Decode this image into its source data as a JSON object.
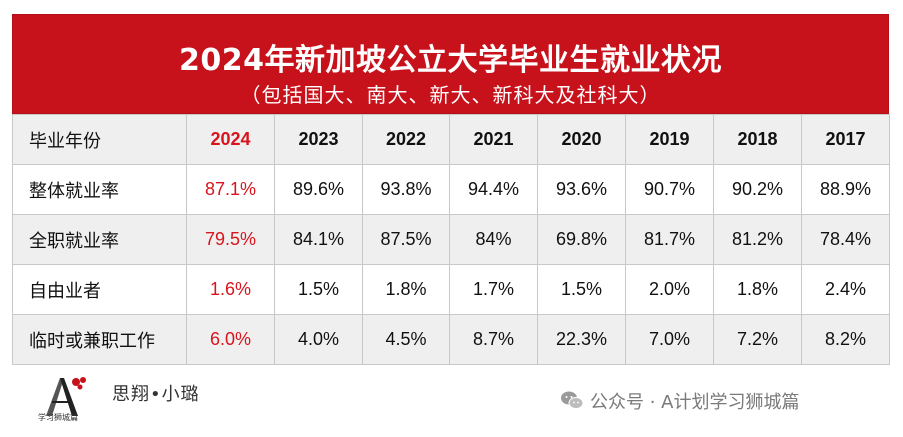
{
  "chart_data": {
    "type": "table",
    "title": "2024年新加坡公立大学毕业生就业状况",
    "subtitle": "（包括国大、南大、新大、新科大及社科大）",
    "header": {
      "label": "毕业年份",
      "years": [
        "2024",
        "2023",
        "2022",
        "2021",
        "2020",
        "2019",
        "2018",
        "2017"
      ]
    },
    "rows": [
      {
        "label": "整体就业率",
        "values": [
          "87.1%",
          "89.6%",
          "93.8%",
          "94.4%",
          "93.6%",
          "90.7%",
          "90.2%",
          "88.9%"
        ]
      },
      {
        "label": "全职就业率",
        "values": [
          "79.5%",
          "84.1%",
          "87.5%",
          "84%",
          "69.8%",
          "81.7%",
          "81.2%",
          "78.4%"
        ]
      },
      {
        "label": "自由业者",
        "values": [
          "1.6%",
          "1.5%",
          "1.8%",
          "1.7%",
          "1.5%",
          "2.0%",
          "1.8%",
          "2.4%"
        ]
      },
      {
        "label": "临时或兼职工作",
        "values": [
          "6.0%",
          "4.0%",
          "4.5%",
          "8.7%",
          "22.3%",
          "7.0%",
          "7.2%",
          "8.2%"
        ]
      }
    ],
    "highlight_color": "#d8141d",
    "header_color": "#c8121b"
  },
  "footer": {
    "logo_caption": "学习狮城篇",
    "signature": "思翔•小璐",
    "brand": "公众号 · A计划学习狮城篇",
    "brand_icon": "wechat-icon"
  }
}
